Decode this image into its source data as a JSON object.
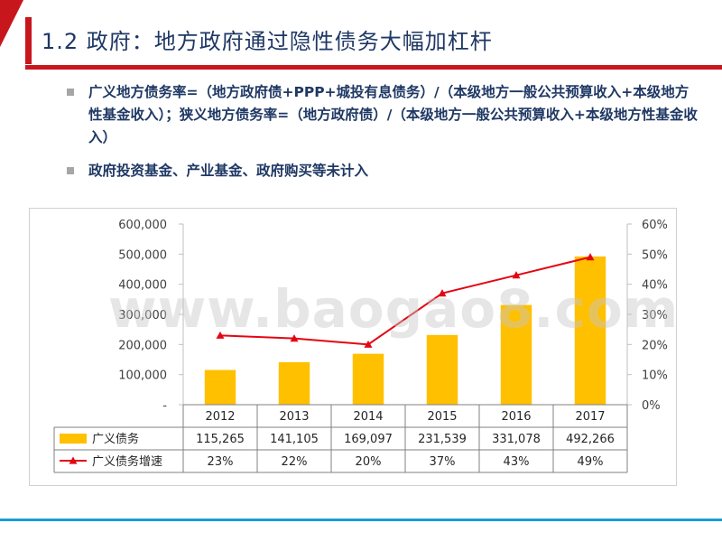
{
  "header": {
    "title": "1.2 政府：地方政府通过隐性债务大幅加杠杆"
  },
  "bullets": [
    "广义地方债务率=（地方政府债+PPP+城投有息债务）/（本级地方一般公共预算收入+本级地方性基金收入）；狭义地方债务率=（地方政府债）/（本级地方一般公共预算收入+本级地方性基金收入）",
    "政府投资基金、产业基金、政府购买等未计入"
  ],
  "watermark": "www.baogao8.com",
  "colors": {
    "bar": "#ffc000",
    "line": "#e30613",
    "title": "#1f3864",
    "accent": "#c8161d",
    "footer": "#1a9bd7"
  },
  "chart_data": {
    "type": "bar+line",
    "categories": [
      "2012",
      "2013",
      "2014",
      "2015",
      "2016",
      "2017"
    ],
    "series": [
      {
        "name": "广义债务",
        "type": "bar",
        "axis": "left",
        "values": [
          115265,
          141105,
          169097,
          231539,
          331078,
          492266
        ],
        "labels": [
          "115,265",
          "141,105",
          "169,097",
          "231,539",
          "331,078",
          "492,266"
        ]
      },
      {
        "name": "广义债务增速",
        "type": "line",
        "axis": "right",
        "values": [
          23,
          22,
          20,
          37,
          43,
          49
        ],
        "labels": [
          "23%",
          "22%",
          "20%",
          "37%",
          "43%",
          "49%"
        ]
      }
    ],
    "y_left": {
      "min": 0,
      "max": 600000,
      "ticks": [
        "-",
        "100,000",
        "200,000",
        "300,000",
        "400,000",
        "500,000",
        "600,000"
      ]
    },
    "y_right": {
      "min": 0,
      "max": 60,
      "ticks": [
        "0%",
        "10%",
        "20%",
        "30%",
        "40%",
        "50%",
        "60%"
      ]
    },
    "data_table": true,
    "grid": false
  }
}
